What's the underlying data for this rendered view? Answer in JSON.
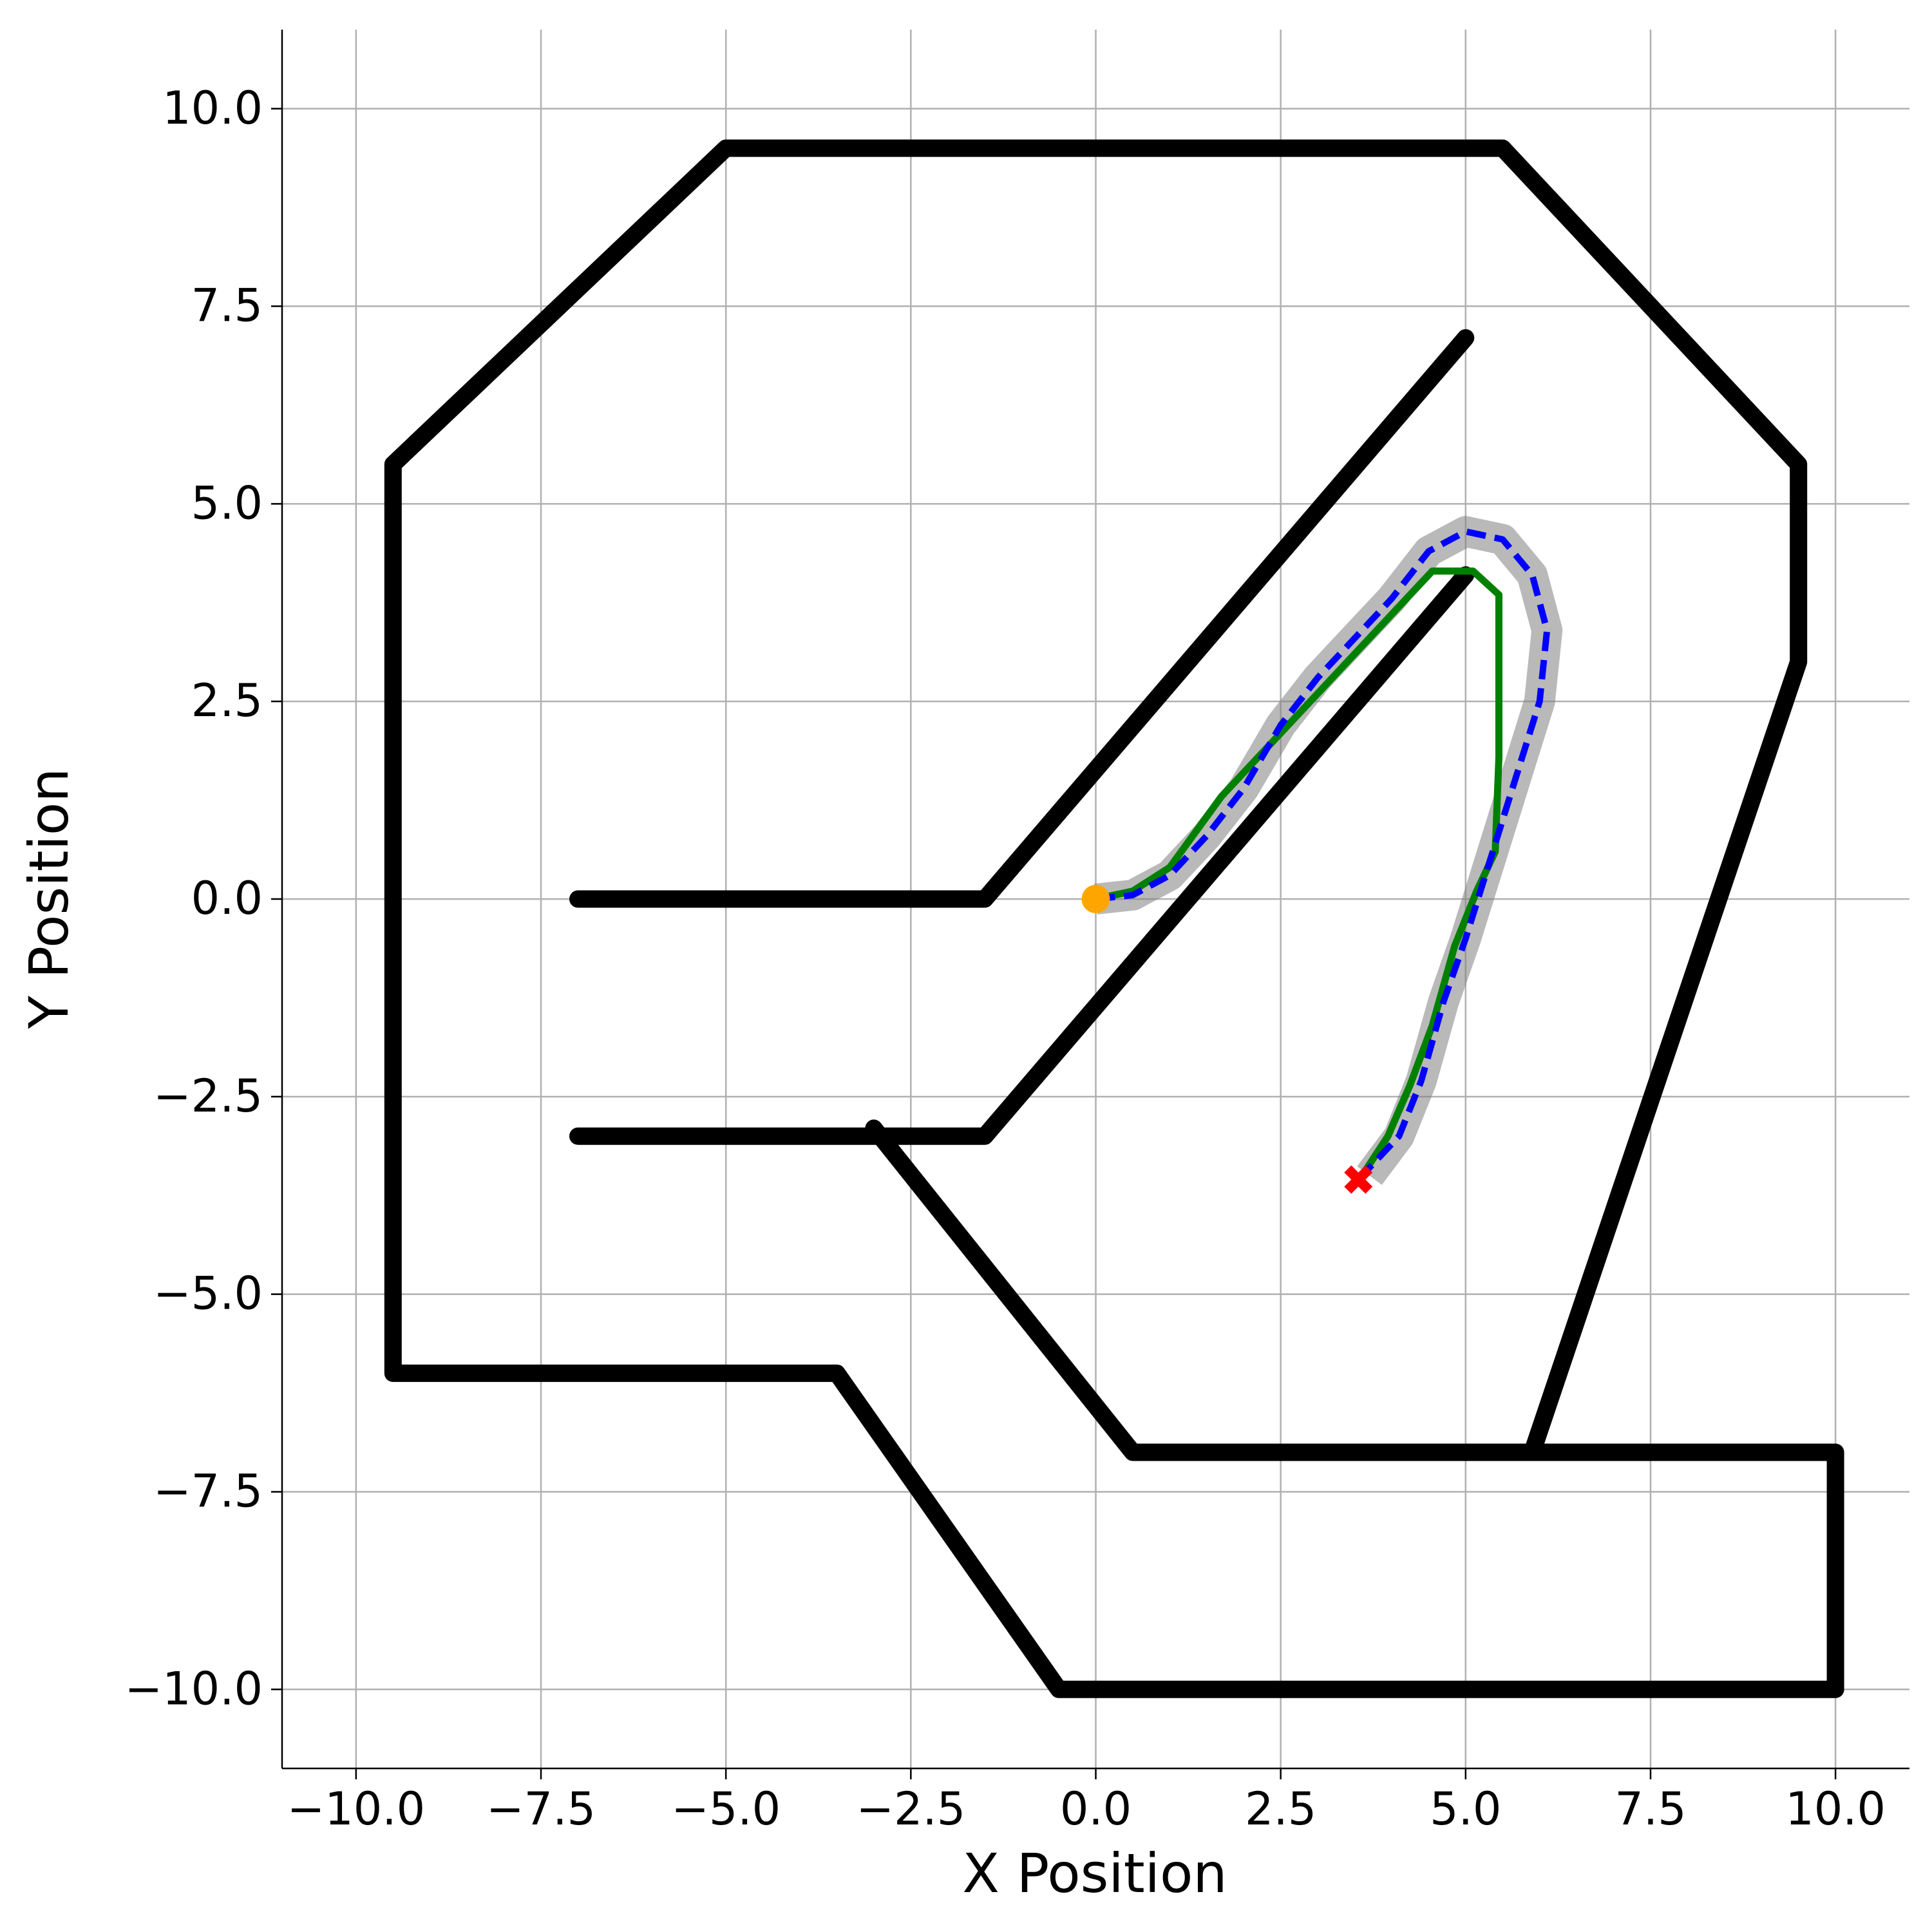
{
  "chart_data": {
    "type": "line",
    "xlabel": "X Position",
    "ylabel": "Y Position",
    "xlim": [
      -11,
      11
    ],
    "ylim": [
      -11,
      11
    ],
    "grid": true,
    "xticks": [
      {
        "value": -10,
        "label": "−10.0"
      },
      {
        "value": -7.5,
        "label": "−7.5"
      },
      {
        "value": -5,
        "label": "−5.0"
      },
      {
        "value": -2.5,
        "label": "−2.5"
      },
      {
        "value": 0,
        "label": "0.0"
      },
      2.5,
      {
        "value": 5,
        "label": "5.0"
      },
      7.5,
      {
        "value": 10,
        "label": "10.0"
      }
    ],
    "yticks": [
      {
        "value": -10,
        "label": "−10.0"
      },
      {
        "value": -7.5,
        "label": "−7.5"
      },
      {
        "value": -5,
        "label": "−5.0"
      },
      {
        "value": -2.5,
        "label": "−2.5"
      },
      {
        "value": 0,
        "label": "0.0"
      },
      2.5,
      {
        "value": 5,
        "label": "5.0"
      },
      7.5,
      {
        "value": 10,
        "label": "10.0"
      }
    ],
    "series": [
      {
        "style": "wall",
        "color": "#000000",
        "x": [
          9.5,
          9.5,
          5.5,
          -5,
          -9.5,
          -9.5,
          -3.5,
          -0.5,
          10,
          10,
          0.5,
          -3,
          null,
          9.5,
          5.9,
          null,
          -7,
          -1.5,
          5,
          null,
          -7,
          -1.5,
          5
        ],
        "y": [
          3,
          5.5,
          9.5,
          9.5,
          5.5,
          -6,
          -6,
          -10,
          -10,
          -7,
          -7,
          -2.9,
          null,
          3,
          -7,
          null,
          0,
          0,
          7.1,
          null,
          -3,
          -3,
          4.1
        ]
      },
      {
        "style": "band",
        "color": "#808080",
        "x": [
          0,
          0.5,
          1,
          1.5,
          2,
          2.5,
          3,
          3.5,
          4,
          4.5,
          5,
          5.5,
          5.9,
          6.1,
          6,
          5.7,
          5.3,
          5,
          4.7,
          4.4,
          4.1,
          3.7
        ],
        "y": [
          0,
          0.05,
          0.3,
          0.8,
          1.4,
          2.2,
          2.8,
          3.3,
          3.8,
          4.4,
          4.65,
          4.55,
          4.1,
          3.4,
          2.5,
          1.6,
          0.4,
          -0.5,
          -1.3,
          -2.3,
          -3,
          -3.5
        ]
      },
      {
        "style": "solid",
        "color": "#008000",
        "x": [
          0,
          0.5,
          1,
          1.7,
          2.5,
          3.5,
          4.55,
          5.1,
          5.45,
          5.45,
          5.4,
          5.15,
          4.85,
          4.55,
          4.25,
          3.95,
          3.6
        ],
        "y": [
          0,
          0.1,
          0.4,
          1.3,
          2.1,
          3.1,
          4.15,
          4.15,
          3.85,
          1.8,
          0.6,
          0.1,
          -0.6,
          -1.6,
          -2.35,
          -3,
          -3.5
        ]
      },
      {
        "style": "dashed",
        "color": "#0000ff",
        "x": [
          0,
          0.5,
          1,
          1.5,
          2,
          2.5,
          3,
          3.5,
          4,
          4.5,
          5,
          5.5,
          5.9,
          6.1,
          6,
          5.7,
          5.3,
          5,
          4.7,
          4.4,
          4.1,
          3.6
        ],
        "y": [
          0,
          0.05,
          0.3,
          0.8,
          1.4,
          2.2,
          2.8,
          3.3,
          3.8,
          4.4,
          4.65,
          4.55,
          4.1,
          3.4,
          2.5,
          1.6,
          0.4,
          -0.5,
          -1.3,
          -2.3,
          -3,
          -3.5
        ]
      },
      {
        "style": "circle",
        "color": "#ffa500",
        "x": [
          0
        ],
        "y": [
          0
        ]
      },
      {
        "style": "cross",
        "color": "#ff0000",
        "x": [
          3.55
        ],
        "y": [
          -3.55
        ]
      }
    ]
  }
}
